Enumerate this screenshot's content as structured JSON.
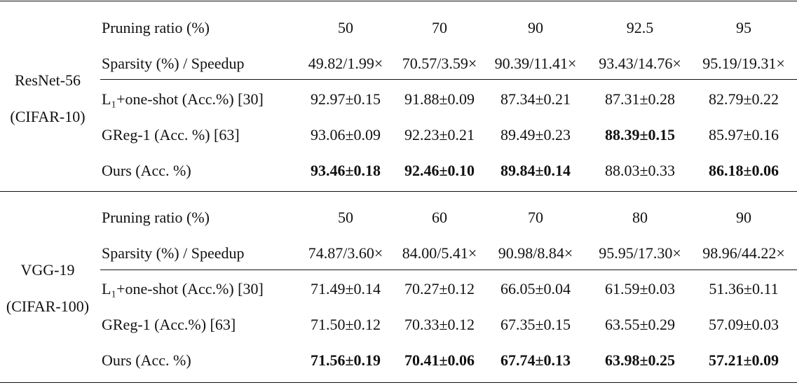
{
  "blocks": [
    {
      "group": [
        "ResNet-56",
        "(CIFAR-10)"
      ],
      "rows": [
        {
          "label": "Pruning ratio (%)",
          "cells": [
            "50",
            "70",
            "90",
            "92.5",
            "95"
          ],
          "bold": []
        },
        {
          "label": "Sparsity (%) / Speedup",
          "cells": [
            "49.82/1.99×",
            "70.57/3.59×",
            "90.39/11.41×",
            "93.43/14.76×",
            "95.19/19.31×"
          ],
          "bold": []
        },
        {
          "label": "L₁+one-shot (Acc.%) [30]",
          "cells": [
            "92.97±0.15",
            "91.88±0.09",
            "87.34±0.21",
            "87.31±0.28",
            "82.79±0.22"
          ],
          "bold": []
        },
        {
          "label": "GReg-1 (Acc. %) [63]",
          "cells": [
            "93.06±0.09",
            "92.23±0.21",
            "89.49±0.23",
            "88.39±0.15",
            "85.97±0.16"
          ],
          "bold": [
            3
          ]
        },
        {
          "label": "Ours (Acc. %)",
          "cells": [
            "93.46±0.18",
            "92.46±0.10",
            "89.84±0.14",
            "88.03±0.33",
            "86.18±0.06"
          ],
          "bold": [
            0,
            1,
            2,
            4
          ]
        }
      ]
    },
    {
      "group": [
        "VGG-19",
        "(CIFAR-100)"
      ],
      "rows": [
        {
          "label": "Pruning ratio (%)",
          "cells": [
            "50",
            "60",
            "70",
            "80",
            "90"
          ],
          "bold": []
        },
        {
          "label": "Sparsity (%) / Speedup",
          "cells": [
            "74.87/3.60×",
            "84.00/5.41×",
            "90.98/8.84×",
            "95.95/17.30×",
            "98.96/44.22×"
          ],
          "bold": []
        },
        {
          "label": "L₁+one-shot (Acc.%) [30]",
          "cells": [
            "71.49±0.14",
            "70.27±0.12",
            "66.05±0.04",
            "61.59±0.03",
            "51.36±0.11"
          ],
          "bold": []
        },
        {
          "label": "GReg-1 (Acc.%) [63]",
          "cells": [
            "71.50±0.12",
            "70.33±0.12",
            "67.35±0.15",
            "63.55±0.29",
            "57.09±0.03"
          ],
          "bold": []
        },
        {
          "label": "Ours (Acc. %)",
          "cells": [
            "71.56±0.19",
            "70.41±0.06",
            "67.74±0.13",
            "63.98±0.25",
            "57.21±0.09"
          ],
          "bold": [
            0,
            1,
            2,
            3,
            4
          ]
        }
      ]
    }
  ]
}
